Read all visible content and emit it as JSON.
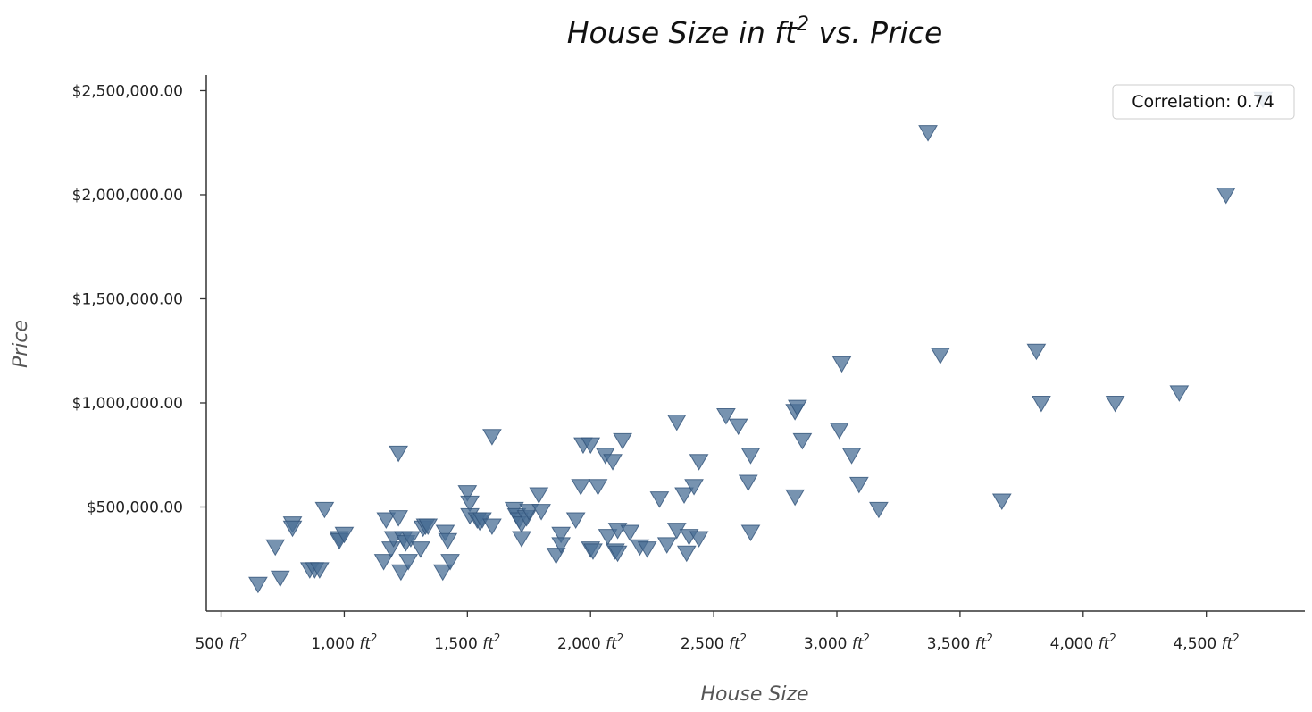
{
  "chart_data": {
    "type": "scatter",
    "title_main": "House Size in ft",
    "title_sup": "2",
    "title_tail": " vs. Price",
    "xlabel": "House Size",
    "ylabel": "Price",
    "xlim": [
      440,
      4900
    ],
    "ylim": [
      0,
      2575000
    ],
    "x_ticks": [
      500,
      1000,
      1500,
      2000,
      2500,
      3000,
      3500,
      4000,
      4500
    ],
    "x_tick_labels": [
      "500",
      "1,000",
      "1,500",
      "2,000",
      "2,500",
      "3,000",
      "3,500",
      "4,000",
      "4,500"
    ],
    "x_tick_unit": "ft",
    "x_tick_unit_sup": "2",
    "y_ticks": [
      500000,
      1000000,
      1500000,
      2000000,
      2500000
    ],
    "y_tick_labels": [
      "$500,000.00",
      "$1,000,000.00",
      "$1,500,000.00",
      "$2,000,000.00",
      "$2,500,000.00"
    ],
    "annotation": "Correlation: 0.74",
    "legend_position": "top-right",
    "marker": "triangle-down",
    "marker_color": "#4a6f96",
    "grid": false,
    "points": [
      [
        650,
        130000
      ],
      [
        720,
        310000
      ],
      [
        740,
        160000
      ],
      [
        790,
        420000
      ],
      [
        790,
        400000
      ],
      [
        860,
        200000
      ],
      [
        880,
        200000
      ],
      [
        900,
        200000
      ],
      [
        920,
        490000
      ],
      [
        980,
        350000
      ],
      [
        980,
        340000
      ],
      [
        1000,
        370000
      ],
      [
        1160,
        240000
      ],
      [
        1170,
        440000
      ],
      [
        1190,
        300000
      ],
      [
        1200,
        350000
      ],
      [
        1220,
        760000
      ],
      [
        1220,
        450000
      ],
      [
        1230,
        190000
      ],
      [
        1240,
        350000
      ],
      [
        1250,
        330000
      ],
      [
        1260,
        240000
      ],
      [
        1270,
        350000
      ],
      [
        1310,
        300000
      ],
      [
        1320,
        400000
      ],
      [
        1330,
        410000
      ],
      [
        1340,
        410000
      ],
      [
        1400,
        190000
      ],
      [
        1410,
        380000
      ],
      [
        1420,
        340000
      ],
      [
        1430,
        240000
      ],
      [
        1500,
        570000
      ],
      [
        1510,
        520000
      ],
      [
        1510,
        460000
      ],
      [
        1540,
        440000
      ],
      [
        1550,
        430000
      ],
      [
        1560,
        440000
      ],
      [
        1600,
        840000
      ],
      [
        1600,
        410000
      ],
      [
        1690,
        490000
      ],
      [
        1700,
        460000
      ],
      [
        1710,
        440000
      ],
      [
        1720,
        420000
      ],
      [
        1720,
        350000
      ],
      [
        1740,
        450000
      ],
      [
        1750,
        480000
      ],
      [
        1790,
        560000
      ],
      [
        1800,
        480000
      ],
      [
        1860,
        270000
      ],
      [
        1880,
        370000
      ],
      [
        1880,
        320000
      ],
      [
        1940,
        440000
      ],
      [
        1960,
        600000
      ],
      [
        1970,
        800000
      ],
      [
        2000,
        800000
      ],
      [
        2000,
        300000
      ],
      [
        2010,
        290000
      ],
      [
        2030,
        600000
      ],
      [
        2060,
        750000
      ],
      [
        2070,
        360000
      ],
      [
        2090,
        720000
      ],
      [
        2100,
        290000
      ],
      [
        2110,
        280000
      ],
      [
        2110,
        390000
      ],
      [
        2130,
        820000
      ],
      [
        2160,
        380000
      ],
      [
        2200,
        310000
      ],
      [
        2230,
        300000
      ],
      [
        2280,
        540000
      ],
      [
        2310,
        320000
      ],
      [
        2350,
        910000
      ],
      [
        2350,
        390000
      ],
      [
        2380,
        560000
      ],
      [
        2390,
        280000
      ],
      [
        2400,
        360000
      ],
      [
        2420,
        600000
      ],
      [
        2440,
        720000
      ],
      [
        2440,
        350000
      ],
      [
        2550,
        940000
      ],
      [
        2600,
        890000
      ],
      [
        2640,
        620000
      ],
      [
        2650,
        750000
      ],
      [
        2650,
        380000
      ],
      [
        2830,
        960000
      ],
      [
        2830,
        550000
      ],
      [
        2840,
        980000
      ],
      [
        2860,
        820000
      ],
      [
        3010,
        870000
      ],
      [
        3020,
        1190000
      ],
      [
        3060,
        750000
      ],
      [
        3090,
        610000
      ],
      [
        3170,
        490000
      ],
      [
        3370,
        2300000
      ],
      [
        3420,
        1230000
      ],
      [
        3670,
        530000
      ],
      [
        3810,
        1250000
      ],
      [
        3830,
        1000000
      ],
      [
        4130,
        1000000
      ],
      [
        4390,
        1050000
      ],
      [
        4580,
        2000000
      ],
      [
        4730,
        2460000
      ]
    ]
  }
}
